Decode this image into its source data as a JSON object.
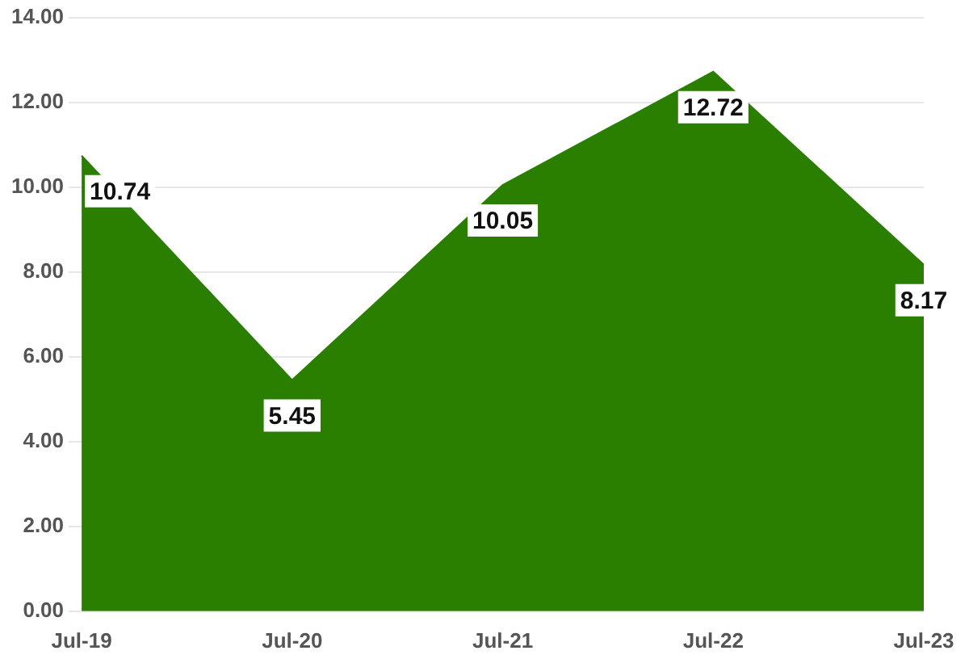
{
  "chart_data": {
    "type": "area",
    "categories": [
      "Jul-19",
      "Jul-20",
      "Jul-21",
      "Jul-22",
      "Jul-23"
    ],
    "values": [
      10.74,
      5.45,
      10.05,
      12.72,
      8.17
    ],
    "color": "#2a7f00",
    "ylim": [
      0,
      14
    ],
    "yticks": [
      {
        "value": 0,
        "label": "0.00"
      },
      {
        "value": 2,
        "label": "2.00"
      },
      {
        "value": 4,
        "label": "4.00"
      },
      {
        "value": 6,
        "label": "6.00"
      },
      {
        "value": 8,
        "label": "8.00"
      },
      {
        "value": 10,
        "label": "10.00"
      },
      {
        "value": 12,
        "label": "12.00"
      },
      {
        "value": 14,
        "label": "14.00"
      }
    ],
    "grid": "y",
    "legend": false,
    "data_labels": true
  }
}
